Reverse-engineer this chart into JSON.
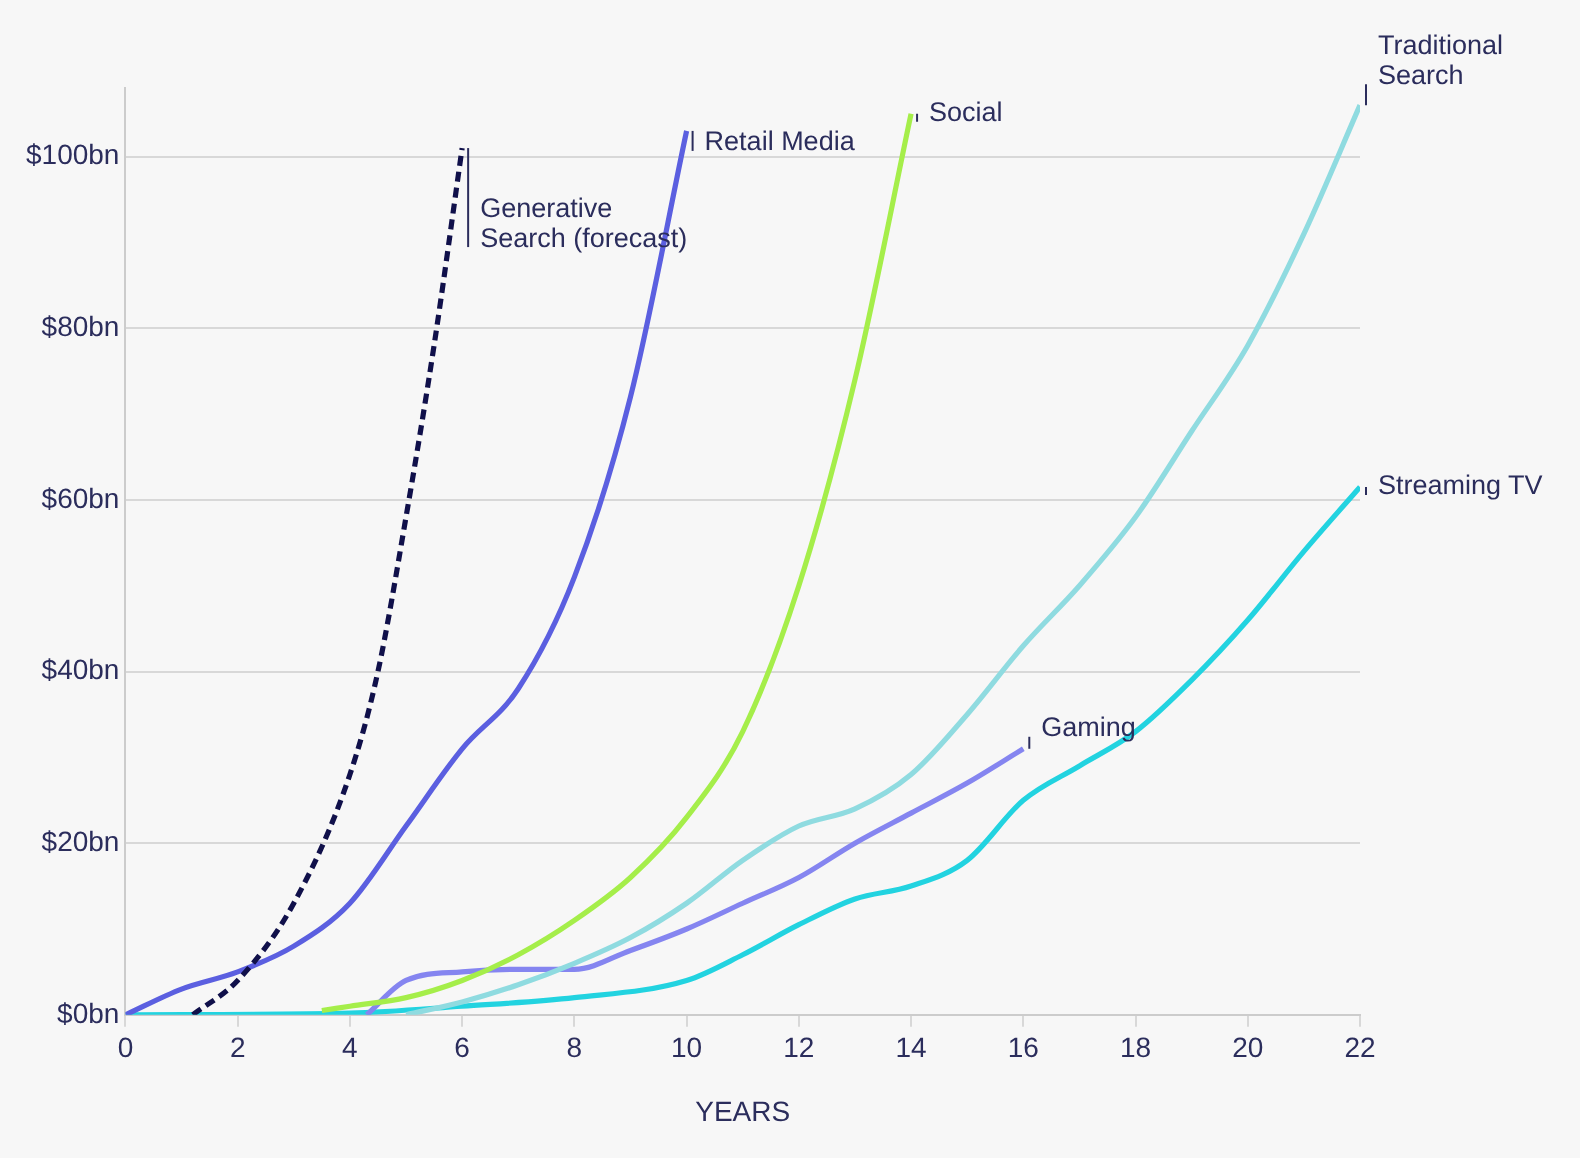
{
  "chart_data": {
    "type": "line",
    "xlabel": "YEARS",
    "xlim": [
      0,
      22
    ],
    "xticks": [
      0,
      2,
      4,
      6,
      8,
      10,
      12,
      14,
      16,
      18,
      20,
      22
    ],
    "ylim": [
      0,
      108
    ],
    "yticks": [
      {
        "value": 0,
        "label": "$0bn"
      },
      {
        "value": 20,
        "label": "$20bn"
      },
      {
        "value": 40,
        "label": "$40bn"
      },
      {
        "value": 60,
        "label": "$60bn"
      },
      {
        "value": 80,
        "label": "$80bn"
      },
      {
        "value": 100,
        "label": "$100bn"
      }
    ],
    "grid": "y",
    "legend": false,
    "marker": "none",
    "series": [
      {
        "name": "Generative Search (forecast)",
        "color": "#10104a",
        "line_style": "dashed",
        "x": [
          1.2,
          2,
          3,
          4,
          4.5,
          5,
          5.5,
          6
        ],
        "values": [
          0,
          4,
          13,
          28,
          40,
          58,
          78,
          101
        ]
      },
      {
        "name": "Retail Media",
        "color": "#5b5fe0",
        "line_style": "solid",
        "x": [
          0,
          1,
          2,
          3,
          4,
          5,
          6,
          7,
          8,
          9,
          10
        ],
        "values": [
          0,
          3,
          5,
          8,
          13,
          22,
          31,
          38,
          51,
          72,
          103
        ]
      },
      {
        "name": "Social",
        "color": "#a5ee4a",
        "line_style": "solid",
        "x": [
          3.5,
          4,
          5,
          6,
          7,
          8,
          9,
          10,
          11,
          12,
          13,
          14
        ],
        "values": [
          0.5,
          1,
          2,
          4,
          7,
          11,
          16,
          23,
          33,
          50,
          74,
          105
        ]
      },
      {
        "name": "Traditional Search",
        "color": "#8fdbe0",
        "line_style": "solid",
        "x": [
          5,
          6,
          7,
          8,
          9,
          10,
          11,
          12,
          13,
          14,
          15,
          16,
          17,
          18,
          19,
          20,
          21,
          22
        ],
        "values": [
          0,
          1.5,
          3.5,
          6,
          9,
          13,
          18,
          22,
          24,
          28,
          35,
          43,
          50,
          58,
          68,
          78,
          91,
          106
        ]
      },
      {
        "name": "Gaming",
        "color": "#8585f0",
        "line_style": "solid",
        "x": [
          4.3,
          5,
          6,
          7,
          8,
          9,
          10,
          11,
          12,
          13,
          14,
          15,
          16
        ],
        "values": [
          0,
          4,
          5,
          5.3,
          5.3,
          7.5,
          10,
          13,
          16,
          20,
          23.5,
          27,
          31
        ]
      },
      {
        "name": "Streaming TV",
        "color": "#22d3e0",
        "line_style": "solid",
        "x": [
          0,
          4,
          6,
          8,
          10,
          11,
          12,
          13,
          14,
          15,
          16,
          17,
          18,
          19,
          20,
          21,
          22
        ],
        "values": [
          0,
          0.2,
          1,
          2,
          4,
          7,
          10.5,
          13.5,
          15,
          18,
          25,
          29,
          33,
          39,
          46,
          54,
          61.5
        ]
      }
    ]
  }
}
